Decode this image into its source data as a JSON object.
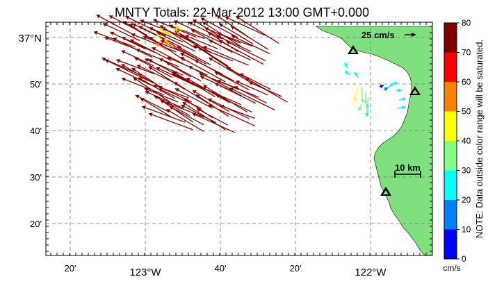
{
  "title": "MNTY Totals: 22-Mar-2012 13:00 GMT+0.000",
  "lat_labels": [
    "37°N",
    "50'",
    "40'",
    "30'",
    "20'"
  ],
  "lon_labels": [
    "20'",
    "123°W",
    "40'",
    "20'",
    "122°W"
  ],
  "scale_vector_label": "25 cm/s",
  "scale_bar_label": "10 km",
  "colorbar": {
    "ticks": [
      "80",
      "70",
      "60",
      "50",
      "40",
      "30",
      "20",
      "10",
      "0"
    ],
    "unit": "cm/s",
    "note": "NOTE: Data outside color range will be saturated.",
    "colors": [
      "#7f0000",
      "#ff0000",
      "#ff8000",
      "#ffff00",
      "#80ff80",
      "#00ffff",
      "#0080ff",
      "#0000ff"
    ]
  },
  "land_color": "#7fe07f",
  "vector_color_dark": "#8b0000",
  "stations_count_note": ""
}
